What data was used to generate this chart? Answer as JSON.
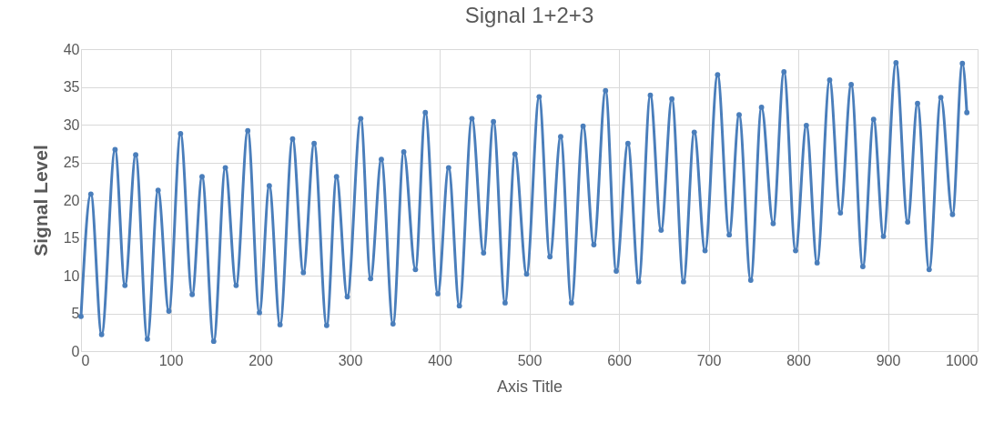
{
  "chart_data": {
    "type": "line",
    "title": "Signal 1+2+3",
    "xlabel": "Axis Title",
    "ylabel": "Signal Level",
    "x": [
      0,
      11,
      23,
      38,
      49,
      61,
      74,
      86,
      98,
      111,
      124,
      135,
      148,
      161,
      173,
      186,
      199,
      210,
      222,
      236,
      248,
      260,
      274,
      285,
      297,
      312,
      323,
      335,
      348,
      360,
      373,
      384,
      398,
      410,
      422,
      436,
      449,
      460,
      473,
      484,
      497,
      511,
      523,
      535,
      547,
      560,
      572,
      585,
      597,
      610,
      622,
      635,
      647,
      659,
      672,
      684,
      696,
      710,
      723,
      734,
      747,
      759,
      772,
      784,
      797,
      809,
      821,
      835,
      847,
      859,
      872,
      884,
      895,
      909,
      922,
      933,
      946,
      959,
      972,
      983,
      988
    ],
    "series": [
      {
        "color": "#4a7ebb",
        "values": [
          4.6,
          20.8,
          2.2,
          26.7,
          8.7,
          26,
          1.6,
          21.3,
          5.3,
          28.8,
          7.5,
          23.1,
          1.3,
          24.3,
          8.7,
          29.2,
          5.1,
          21.9,
          3.5,
          28.1,
          10.4,
          27.5,
          3.4,
          23.1,
          7.2,
          30.8,
          9.6,
          25.4,
          3.6,
          26.4,
          10.8,
          31.6,
          7.6,
          24.3,
          6.0,
          30.8,
          13,
          30.4,
          6.4,
          26.1,
          10.2,
          33.7,
          12.5,
          28.4,
          6.4,
          29.8,
          14.1,
          34.5,
          10.6,
          27.5,
          9.2,
          33.9,
          16,
          33.4,
          9.2,
          29,
          13.3,
          36.6,
          15.4,
          31.3,
          9.4,
          32.3,
          16.9,
          37,
          13.3,
          29.9,
          11.7,
          35.9,
          18.3,
          35.3,
          11.2,
          30.7,
          15.2,
          38.2,
          17.1,
          32.8,
          10.8,
          33.6,
          18.1,
          38.1,
          31.6
        ]
      }
    ],
    "xlim": [
      0,
      1000
    ],
    "xticks": [
      0,
      100,
      200,
      300,
      400,
      500,
      600,
      700,
      800,
      900,
      1000
    ],
    "ylim": [
      0,
      40
    ],
    "yticks": [
      0,
      5,
      10,
      15,
      20,
      25,
      30,
      35,
      40
    ],
    "grid": true,
    "marker": "circle",
    "line_style": "solid"
  }
}
